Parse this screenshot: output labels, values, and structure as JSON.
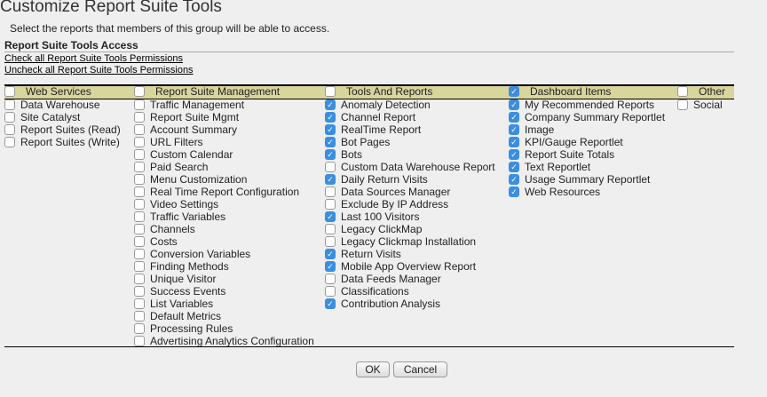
{
  "title": "Customize Report Suite Tools",
  "subtitle": "Select the reports that members of this group will be able to access.",
  "section": "Report Suite Tools Access",
  "links": {
    "check_all": "Check all Report Suite Tools Permissions",
    "uncheck_all": "Uncheck all Report Suite Tools Permissions"
  },
  "accent": "#3b8ee0",
  "columns": [
    {
      "header": "Web Services",
      "checked": false,
      "items": [
        {
          "label": "Data Warehouse",
          "checked": false
        },
        {
          "label": "Site Catalyst",
          "checked": false
        },
        {
          "label": "Report Suites (Read)",
          "checked": false
        },
        {
          "label": "Report Suites (Write)",
          "checked": false
        }
      ]
    },
    {
      "header": "Report Suite Management",
      "checked": false,
      "items": [
        {
          "label": "Traffic Management",
          "checked": false
        },
        {
          "label": "Report Suite Mgmt",
          "checked": false
        },
        {
          "label": "Account Summary",
          "checked": false
        },
        {
          "label": "URL Filters",
          "checked": false
        },
        {
          "label": "Custom Calendar",
          "checked": false
        },
        {
          "label": "Paid Search",
          "checked": false
        },
        {
          "label": "Menu Customization",
          "checked": false
        },
        {
          "label": "Real Time Report Configuration",
          "checked": false
        },
        {
          "label": "Video Settings",
          "checked": false
        },
        {
          "label": "Traffic Variables",
          "checked": false
        },
        {
          "label": "Channels",
          "checked": false
        },
        {
          "label": "Costs",
          "checked": false
        },
        {
          "label": "Conversion Variables",
          "checked": false
        },
        {
          "label": "Finding Methods",
          "checked": false
        },
        {
          "label": "Unique Visitor",
          "checked": false
        },
        {
          "label": "Success Events",
          "checked": false
        },
        {
          "label": "List Variables",
          "checked": false
        },
        {
          "label": "Default Metrics",
          "checked": false
        },
        {
          "label": "Processing Rules",
          "checked": false
        },
        {
          "label": "Advertising Analytics Configuration",
          "checked": false
        }
      ]
    },
    {
      "header": "Tools And Reports",
      "checked": false,
      "items": [
        {
          "label": "Anomaly Detection",
          "checked": true
        },
        {
          "label": "Channel Report",
          "checked": true
        },
        {
          "label": "RealTime Report",
          "checked": true
        },
        {
          "label": "Bot Pages",
          "checked": true
        },
        {
          "label": "Bots",
          "checked": true
        },
        {
          "label": "Custom Data Warehouse Report",
          "checked": false
        },
        {
          "label": "Daily Return Visits",
          "checked": true
        },
        {
          "label": "Data Sources Manager",
          "checked": false
        },
        {
          "label": "Exclude By IP Address",
          "checked": false
        },
        {
          "label": "Last 100 Visitors",
          "checked": true
        },
        {
          "label": "Legacy ClickMap",
          "checked": false
        },
        {
          "label": "Legacy Clickmap Installation",
          "checked": false
        },
        {
          "label": "Return Visits",
          "checked": true
        },
        {
          "label": "Mobile App Overview Report",
          "checked": true
        },
        {
          "label": "Data Feeds Manager",
          "checked": false
        },
        {
          "label": "Classifications",
          "checked": false
        },
        {
          "label": "Contribution Analysis",
          "checked": true
        }
      ]
    },
    {
      "header": "Dashboard Items",
      "checked": true,
      "items": [
        {
          "label": "My Recommended Reports",
          "checked": true
        },
        {
          "label": "Company Summary Reportlet",
          "checked": true
        },
        {
          "label": "Image",
          "checked": true
        },
        {
          "label": "KPI/Gauge Reportlet",
          "checked": true
        },
        {
          "label": "Report Suite Totals",
          "checked": true
        },
        {
          "label": "Text Reportlet",
          "checked": true
        },
        {
          "label": "Usage Summary Reportlet",
          "checked": true
        },
        {
          "label": "Web Resources",
          "checked": true
        }
      ]
    },
    {
      "header": "Other",
      "checked": false,
      "items": [
        {
          "label": "Social",
          "checked": false
        }
      ]
    }
  ],
  "buttons": {
    "ok": "OK",
    "cancel": "Cancel"
  }
}
